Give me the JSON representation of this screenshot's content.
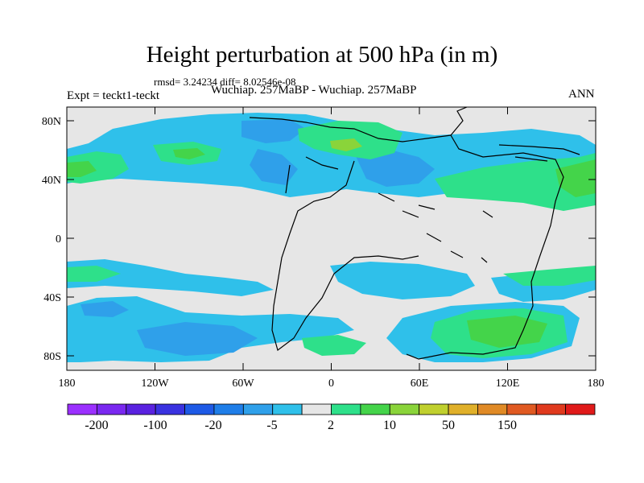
{
  "title": "Height perturbation at 500 hPa (in m)",
  "stats": "rmsd= 3.24234 diff= 8.02546e-08",
  "left_label": "Expt = teckt1-teckt",
  "subtitle": "Wuchiap. 257MaBP - Wuchiap. 257MaBP",
  "right_label": "ANN",
  "x_ticks": [
    "180",
    "120W",
    "60W",
    "0",
    "60E",
    "120E",
    "180"
  ],
  "y_ticks": [
    "80N",
    "40N",
    "0",
    "40S",
    "80S"
  ],
  "colorbar": {
    "colors": [
      "#9b30ff",
      "#7a28f0",
      "#5a22e0",
      "#3a32e0",
      "#1e5ae6",
      "#1f7ee8",
      "#2fa0ea",
      "#2fc0ea",
      "#e6e6e6",
      "#2ee08a",
      "#44d44a",
      "#8ad43a",
      "#c0d02e",
      "#e0b02a",
      "#e08a26",
      "#e05a22",
      "#e03a1e",
      "#e01a1a"
    ],
    "labels": [
      "-200",
      "-100",
      "-20",
      "-5",
      "2",
      "10",
      "50",
      "150"
    ]
  },
  "fill_colors": {
    "neutral": "#e6e6e6",
    "light_blue": "#2fc0ea",
    "mid_blue": "#2fa0ea",
    "green": "#2ee08a",
    "lime": "#44d44a",
    "yellow_green": "#8ad43a",
    "coast": "#000000"
  }
}
